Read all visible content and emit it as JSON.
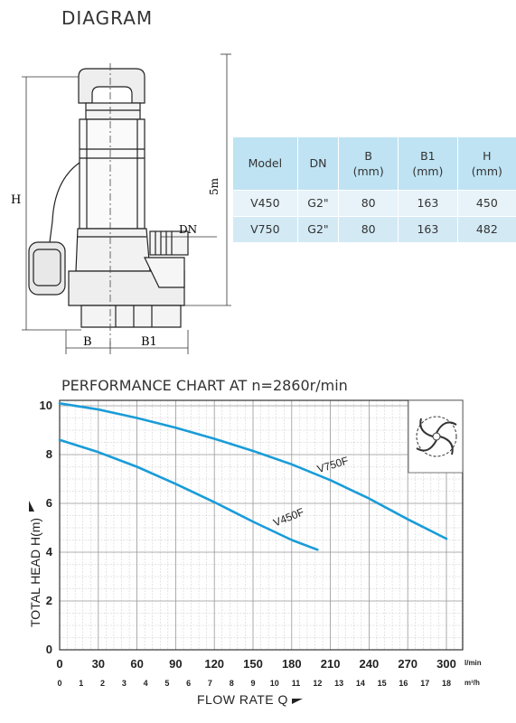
{
  "diagram": {
    "title": "DIAGRAM",
    "dim_h": "H",
    "dim_dn": "DN",
    "dim_b": "B",
    "dim_b1": "B1",
    "dim_cable": "5m"
  },
  "spec_table": {
    "headers": [
      [
        "Model"
      ],
      [
        "DN"
      ],
      [
        "B",
        "(mm)"
      ],
      [
        "B1",
        "(mm)"
      ],
      [
        "H",
        "(mm)"
      ]
    ],
    "rows": [
      [
        "V450",
        "G2\"",
        "80",
        "163",
        "450"
      ],
      [
        "V750",
        "G2\"",
        "80",
        "163",
        "482"
      ]
    ]
  },
  "chart_title": "PERFORMANCE CHART AT n=2860r/min",
  "chart_data": {
    "type": "line",
    "xlabel": "FLOW RATE Q",
    "ylabel": "TOTAL HEAD H(m)",
    "x_unit": "l/min",
    "x2_unit": "m³/h",
    "xlim": [
      0,
      300
    ],
    "ylim": [
      0,
      10
    ],
    "x_ticks": [
      0,
      30,
      60,
      90,
      120,
      150,
      180,
      210,
      240,
      270,
      300
    ],
    "x2_ticks": [
      0,
      1,
      2,
      3,
      4,
      5,
      6,
      7,
      8,
      9,
      10,
      11,
      12,
      13,
      14,
      15,
      16,
      17,
      18
    ],
    "y_ticks": [
      0,
      2,
      4,
      6,
      8,
      10
    ],
    "grid": true,
    "series": [
      {
        "name": "V750F",
        "color": "#1a9cd8",
        "x": [
          0,
          30,
          60,
          90,
          120,
          150,
          180,
          210,
          240,
          270,
          300
        ],
        "y": [
          10.1,
          9.85,
          9.5,
          9.1,
          8.65,
          8.15,
          7.6,
          6.95,
          6.2,
          5.35,
          4.55
        ]
      },
      {
        "name": "V450F",
        "color": "#1a9cd8",
        "x": [
          0,
          30,
          60,
          90,
          120,
          150,
          180,
          200
        ],
        "y": [
          8.6,
          8.1,
          7.5,
          6.8,
          6.05,
          5.25,
          4.5,
          4.1
        ]
      }
    ]
  }
}
